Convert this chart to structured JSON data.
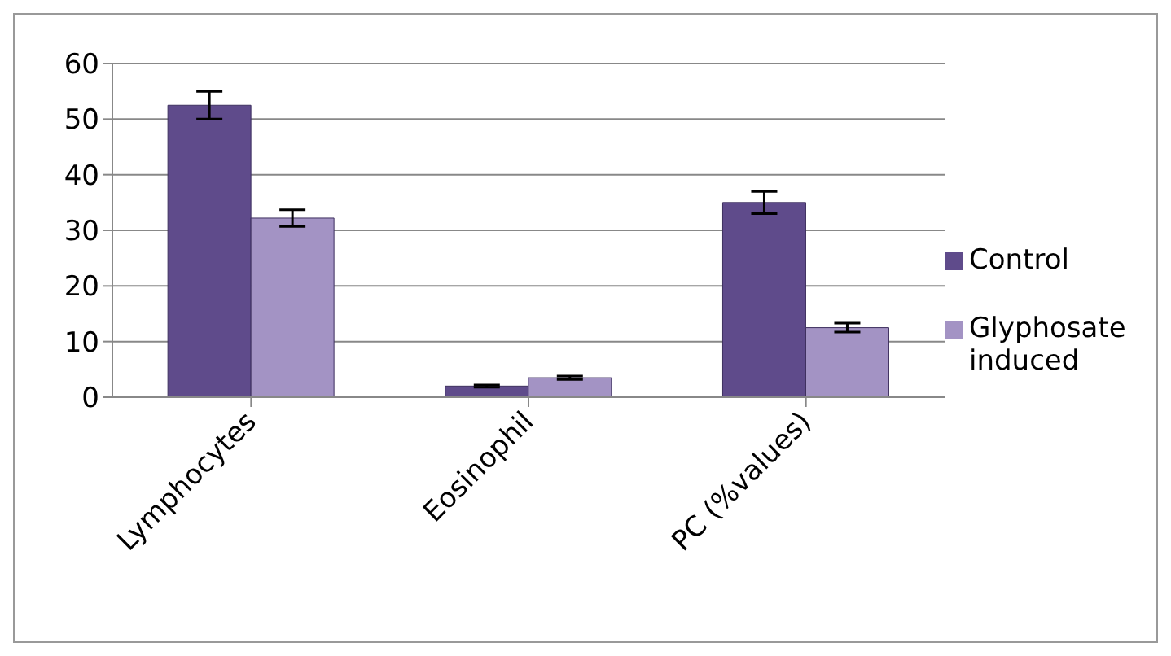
{
  "chart_data": {
    "type": "bar",
    "categories": [
      "Lymphocytes",
      "Eosinophil",
      "PC (%values)"
    ],
    "series": [
      {
        "name": "Control",
        "color": "#5f4b8b",
        "values": [
          52.5,
          2,
          35
        ],
        "errors": [
          2.5,
          0.2,
          2
        ]
      },
      {
        "name": "Glyphosate induced",
        "color": "#a393c4",
        "values": [
          32.2,
          3.5,
          12.5
        ],
        "errors": [
          1.5,
          0.3,
          0.8
        ]
      }
    ],
    "ylim": [
      0,
      60
    ],
    "yticks": [
      0,
      10,
      20,
      30,
      40,
      50,
      60
    ],
    "grid": "y",
    "legend": "right"
  }
}
